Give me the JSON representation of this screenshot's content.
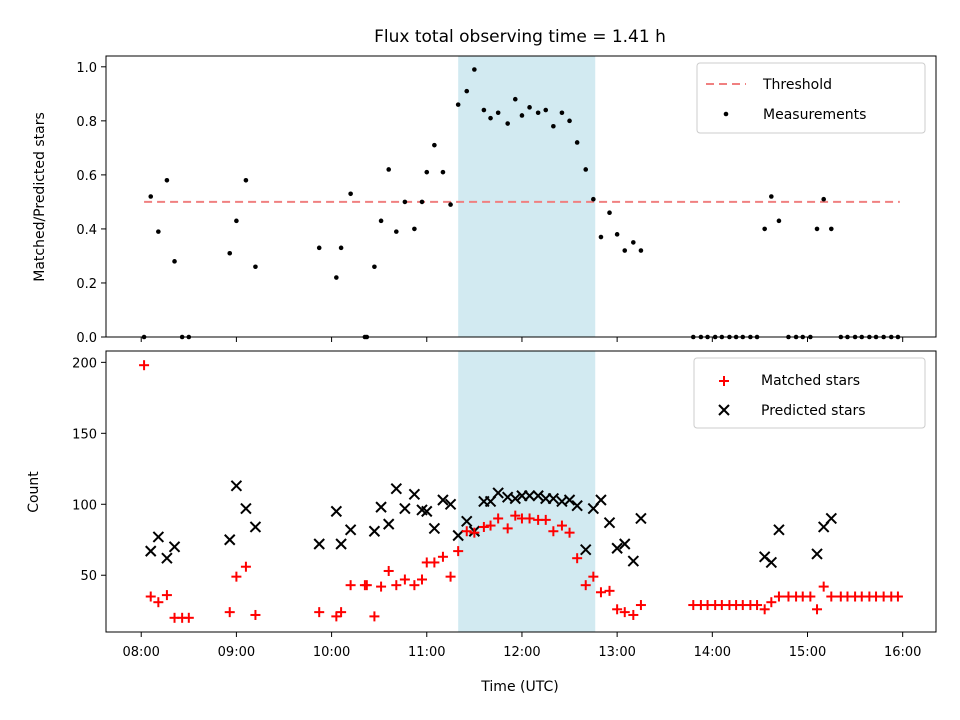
{
  "title": "Flux total observing time = 1.41 h",
  "x_ticks": [
    "08:00",
    "09:00",
    "10:00",
    "11:00",
    "12:00",
    "13:00",
    "14:00",
    "15:00",
    "16:00"
  ],
  "colors": {
    "threshold": "#f08080",
    "matched": "#ff0000",
    "predicted": "#000000",
    "span": "#add8e6",
    "measurement": "#000000"
  },
  "chart_data": [
    {
      "type": "scatter",
      "ylabel": "Matched/Predicted stars",
      "xlabel": "",
      "xlim": [
        7.63,
        16.35
      ],
      "ylim": [
        0,
        1.04
      ],
      "y_ticks": [
        "0.0",
        "0.2",
        "0.4",
        "0.6",
        "0.8",
        "1.0"
      ],
      "highlight_span": [
        11.33,
        12.77
      ],
      "threshold": {
        "name": "Threshold",
        "y": 0.5,
        "x_range": [
          8.03,
          15.97
        ]
      },
      "legend": {
        "placement": "top-right",
        "entries": [
          "Threshold",
          "Measurements"
        ]
      },
      "series": [
        {
          "name": "Measurements",
          "x": [
            8.03,
            8.1,
            8.18,
            8.27,
            8.35,
            8.43,
            8.5,
            8.93,
            9.0,
            9.1,
            9.2,
            9.87,
            10.05,
            10.1,
            10.2,
            10.35,
            10.37,
            10.45,
            10.52,
            10.6,
            10.68,
            10.77,
            10.87,
            10.95,
            11.0,
            11.08,
            11.17,
            11.25,
            11.33,
            11.42,
            11.5,
            11.6,
            11.67,
            11.75,
            11.85,
            11.93,
            12.0,
            12.08,
            12.17,
            12.25,
            12.33,
            12.42,
            12.5,
            12.58,
            12.67,
            12.75,
            12.83,
            12.92,
            13.0,
            13.08,
            13.17,
            13.25,
            13.8,
            13.88,
            13.95,
            14.03,
            14.1,
            14.18,
            14.25,
            14.32,
            14.4,
            14.47,
            14.55,
            14.62,
            14.7,
            14.8,
            14.88,
            14.95,
            15.03,
            15.1,
            15.17,
            15.25,
            15.35,
            15.42,
            15.5,
            15.57,
            15.65,
            15.72,
            15.8,
            15.88,
            15.95
          ],
          "y": [
            0.0,
            0.52,
            0.39,
            0.58,
            0.28,
            0.0,
            0.0,
            0.31,
            0.43,
            0.58,
            0.26,
            0.33,
            0.22,
            0.33,
            0.53,
            0.0,
            0.0,
            0.26,
            0.43,
            0.62,
            0.39,
            0.5,
            0.4,
            0.5,
            0.61,
            0.71,
            0.61,
            0.49,
            0.86,
            0.91,
            0.99,
            0.84,
            0.81,
            0.83,
            0.79,
            0.88,
            0.82,
            0.85,
            0.83,
            0.84,
            0.78,
            0.83,
            0.8,
            0.72,
            0.62,
            0.51,
            0.37,
            0.46,
            0.38,
            0.32,
            0.35,
            0.32,
            0.0,
            0.0,
            0.0,
            0.0,
            0.0,
            0.0,
            0.0,
            0.0,
            0.0,
            0.0,
            0.4,
            0.52,
            0.43,
            0.0,
            0.0,
            0.0,
            0.0,
            0.4,
            0.51,
            0.4,
            0.0,
            0.0,
            0.0,
            0.0,
            0.0,
            0.0,
            0.0,
            0.0,
            0.0
          ]
        }
      ]
    },
    {
      "type": "scatter",
      "ylabel": "Count",
      "xlabel": "Time (UTC)",
      "xlim": [
        7.63,
        16.35
      ],
      "ylim": [
        10,
        208
      ],
      "y_ticks": [
        "50",
        "100",
        "150",
        "200"
      ],
      "highlight_span": [
        11.33,
        12.77
      ],
      "legend": {
        "placement": "top-right",
        "entries": [
          "Matched stars",
          "Predicted stars"
        ]
      },
      "series": [
        {
          "name": "Matched stars",
          "x": [
            8.03,
            8.1,
            8.18,
            8.27,
            8.35,
            8.43,
            8.5,
            8.93,
            9.0,
            9.1,
            9.2,
            9.87,
            10.05,
            10.1,
            10.2,
            10.35,
            10.37,
            10.45,
            10.52,
            10.6,
            10.68,
            10.77,
            10.87,
            10.95,
            11.0,
            11.08,
            11.17,
            11.25,
            11.33,
            11.42,
            11.5,
            11.6,
            11.67,
            11.75,
            11.85,
            11.93,
            12.0,
            12.08,
            12.17,
            12.25,
            12.33,
            12.42,
            12.5,
            12.58,
            12.67,
            12.75,
            12.83,
            12.92,
            13.0,
            13.08,
            13.17,
            13.25,
            13.8,
            13.88,
            13.95,
            14.03,
            14.1,
            14.18,
            14.25,
            14.32,
            14.4,
            14.47,
            14.55,
            14.62,
            14.7,
            14.8,
            14.88,
            14.95,
            15.03,
            15.1,
            15.17,
            15.25,
            15.35,
            15.42,
            15.5,
            15.57,
            15.65,
            15.72,
            15.8,
            15.88,
            15.95
          ],
          "y": [
            198,
            35,
            31,
            36,
            20,
            20,
            20,
            24,
            49,
            56,
            22,
            24,
            21,
            24,
            43,
            43,
            43,
            21,
            42,
            53,
            43,
            47,
            43,
            47,
            59,
            59,
            63,
            49,
            67,
            81,
            80,
            84,
            85,
            90,
            83,
            92,
            90,
            90,
            89,
            89,
            81,
            85,
            80,
            62,
            43,
            49,
            38,
            39,
            26,
            24,
            22,
            29,
            29,
            29,
            29,
            29,
            29,
            29,
            29,
            29,
            29,
            29,
            26,
            31,
            35,
            35,
            35,
            35,
            35,
            26,
            42,
            35,
            35,
            35,
            35,
            35,
            35,
            35,
            35,
            35,
            35
          ]
        },
        {
          "name": "Predicted stars",
          "x": [
            8.1,
            8.18,
            8.27,
            8.35,
            8.93,
            9.0,
            9.1,
            9.2,
            9.87,
            10.05,
            10.1,
            10.2,
            10.45,
            10.52,
            10.6,
            10.68,
            10.77,
            10.87,
            10.95,
            11.0,
            11.08,
            11.17,
            11.25,
            11.33,
            11.42,
            11.5,
            11.6,
            11.67,
            11.75,
            11.85,
            11.93,
            12.0,
            12.08,
            12.17,
            12.25,
            12.33,
            12.42,
            12.5,
            12.58,
            12.67,
            12.75,
            12.83,
            12.92,
            13.0,
            13.08,
            13.17,
            13.25,
            14.55,
            14.62,
            14.7,
            15.1,
            15.17,
            15.25
          ],
          "y": [
            67,
            77,
            62,
            70,
            75,
            113,
            97,
            84,
            72,
            95,
            72,
            82,
            81,
            98,
            86,
            111,
            97,
            107,
            96,
            95,
            83,
            103,
            100,
            78,
            88,
            81,
            102,
            102,
            108,
            105,
            104,
            106,
            106,
            106,
            104,
            104,
            102,
            103,
            99,
            68,
            97,
            103,
            87,
            69,
            72,
            60,
            90,
            63,
            59,
            82,
            65,
            84,
            90
          ]
        }
      ]
    }
  ]
}
